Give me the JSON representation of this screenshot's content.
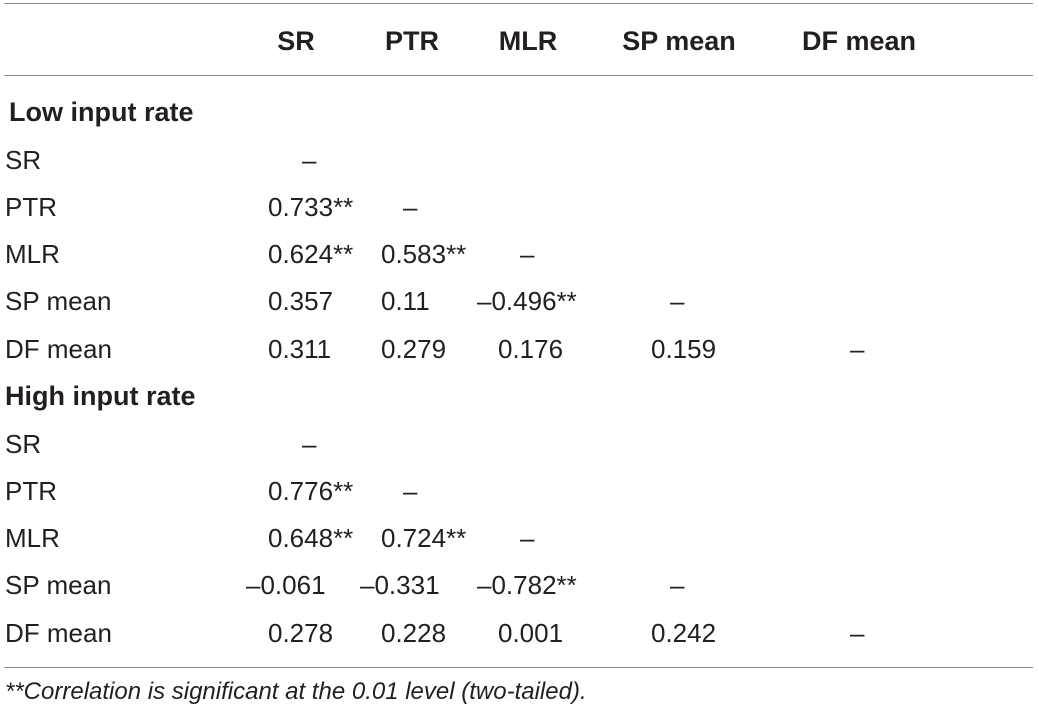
{
  "columns": [
    "SR",
    "PTR",
    "MLR",
    "SP mean",
    "DF mean"
  ],
  "sections": [
    {
      "title": "Low input rate",
      "rows": [
        {
          "label": "SR",
          "values": [
            "–",
            "",
            "",
            "",
            ""
          ]
        },
        {
          "label": "PTR",
          "values": [
            "0.733**",
            "–",
            "",
            "",
            ""
          ]
        },
        {
          "label": "MLR",
          "values": [
            "0.624**",
            "0.583**",
            "–",
            "",
            ""
          ]
        },
        {
          "label": "SP mean",
          "values": [
            "0.357",
            "0.11",
            "–0.496**",
            "–",
            ""
          ]
        },
        {
          "label": "DF mean",
          "values": [
            "0.311",
            "0.279",
            "0.176",
            "0.159",
            "–"
          ]
        }
      ]
    },
    {
      "title": "High input rate",
      "rows": [
        {
          "label": "SR",
          "values": [
            "–",
            "",
            "",
            "",
            ""
          ]
        },
        {
          "label": "PTR",
          "values": [
            "0.776**",
            "–",
            "",
            "",
            ""
          ]
        },
        {
          "label": "MLR",
          "values": [
            "0.648**",
            "0.724**",
            "–",
            "",
            ""
          ]
        },
        {
          "label": "SP mean",
          "values": [
            "–0.061",
            "–0.331",
            "–0.782**",
            "–",
            ""
          ]
        },
        {
          "label": "DF mean",
          "values": [
            "0.278",
            "0.228",
            "0.001",
            "0.242",
            "–"
          ]
        }
      ]
    }
  ],
  "footnote": "**Correlation is significant at the 0.01 level (two-tailed)."
}
